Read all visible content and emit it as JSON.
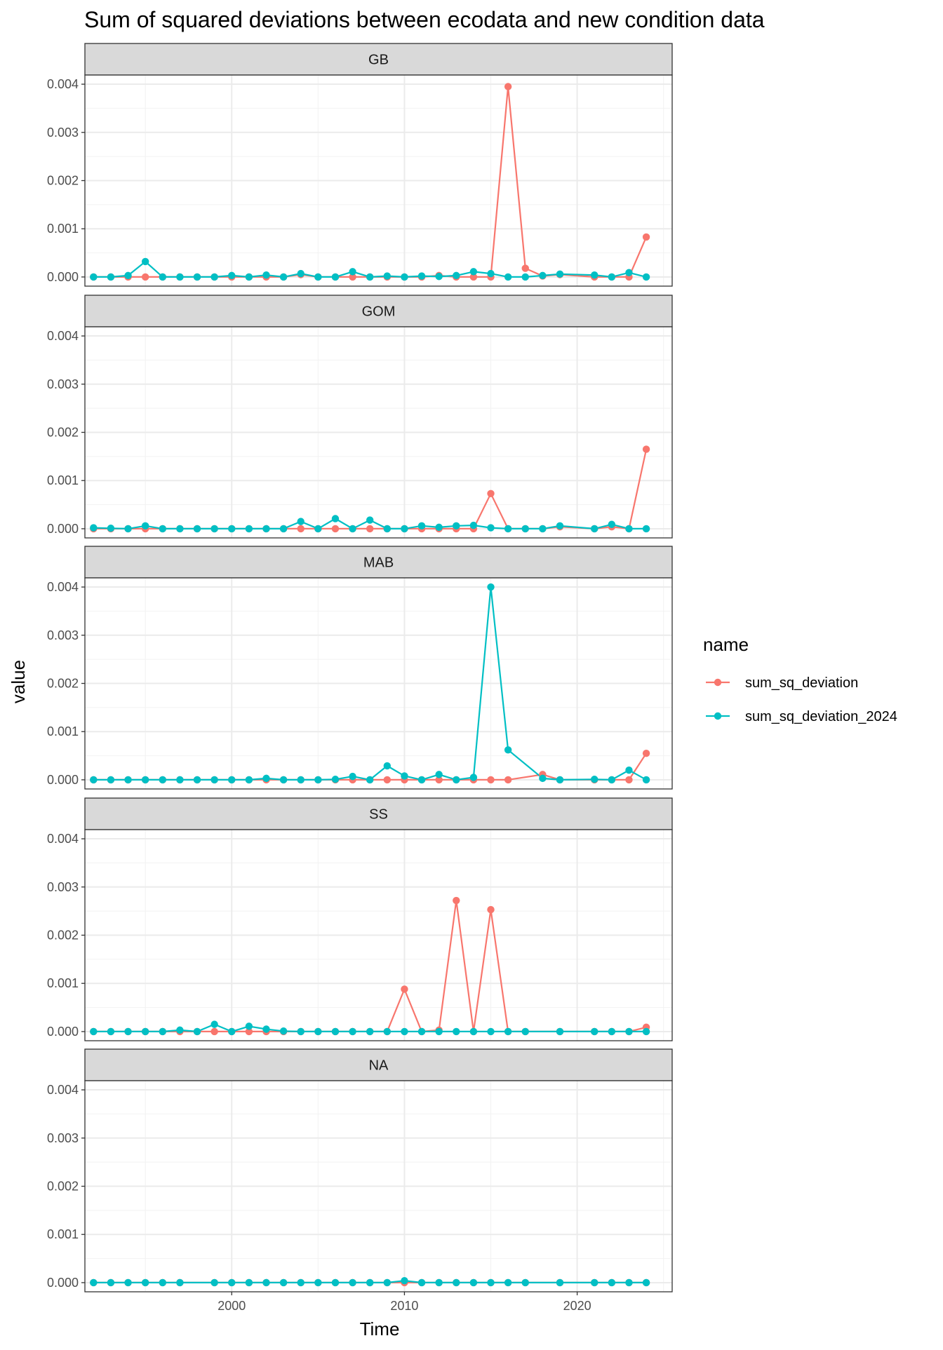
{
  "chart_data": {
    "type": "line",
    "title": "Sum of squared deviations between ecodata and new condition data",
    "xlabel": "Time",
    "ylabel": "value",
    "xlim": [
      1991.5,
      2025.5
    ],
    "ylim": [
      -0.00019,
      0.00419
    ],
    "x_ticks": [
      2000,
      2010,
      2020
    ],
    "x_tick_labels": [
      "2000",
      "2010",
      "2020"
    ],
    "y_ticks": [
      0,
      0.001,
      0.002,
      0.003,
      0.004
    ],
    "y_tick_labels": [
      "0.000",
      "0.001",
      "0.002",
      "0.003",
      "0.004"
    ],
    "grid": true,
    "theme": "bw",
    "legend": {
      "title": "name",
      "position": "right",
      "entries": [
        {
          "label": "sum_sq_deviation",
          "color": "#F8766D"
        },
        {
          "label": "sum_sq_deviation_2024",
          "color": "#00BFC4"
        }
      ]
    },
    "panels": [
      {
        "label": "GB",
        "series": [
          {
            "name": "sum_sq_deviation",
            "color": "#F8766D",
            "x": [
              1992,
              1993,
              1994,
              1995,
              1996,
              1997,
              1998,
              1999,
              2000,
              2001,
              2002,
              2003,
              2004,
              2005,
              2006,
              2007,
              2008,
              2009,
              2010,
              2011,
              2012,
              2013,
              2014,
              2015,
              2016,
              2017,
              2018,
              2019,
              2021,
              2022,
              2023,
              2024
            ],
            "y": [
              0,
              0,
              0,
              0,
              0,
              0,
              0,
              0,
              0,
              0,
              0,
              0,
              5e-05,
              0,
              0,
              0,
              0,
              0,
              0,
              0,
              3e-05,
              0,
              0,
              0,
              0.00395,
              0.00018,
              2e-05,
              5e-05,
              0,
              0,
              0,
              0.00083
            ]
          },
          {
            "name": "sum_sq_deviation_2024",
            "color": "#00BFC4",
            "x": [
              1992,
              1993,
              1994,
              1995,
              1996,
              1997,
              1998,
              1999,
              2000,
              2001,
              2002,
              2003,
              2004,
              2005,
              2006,
              2007,
              2008,
              2009,
              2010,
              2011,
              2012,
              2013,
              2014,
              2015,
              2016,
              2017,
              2018,
              2019,
              2021,
              2022,
              2023,
              2024
            ],
            "y": [
              0,
              0,
              3e-05,
              0.00032,
              0,
              0,
              0,
              0,
              3e-05,
              0,
              4e-05,
              0,
              7e-05,
              0,
              0,
              0.00011,
              0,
              2e-05,
              0,
              2e-05,
              1e-05,
              3e-05,
              0.00011,
              7e-05,
              0,
              0,
              3e-05,
              6e-05,
              4e-05,
              0,
              9e-05,
              0
            ]
          }
        ]
      },
      {
        "label": "GOM",
        "series": [
          {
            "name": "sum_sq_deviation",
            "color": "#F8766D",
            "x": [
              1992,
              1993,
              1994,
              1995,
              1996,
              1997,
              1998,
              1999,
              2000,
              2001,
              2002,
              2003,
              2004,
              2005,
              2006,
              2007,
              2008,
              2009,
              2010,
              2011,
              2012,
              2013,
              2014,
              2015,
              2016,
              2017,
              2018,
              2019,
              2021,
              2022,
              2023,
              2024
            ],
            "y": [
              0,
              0,
              0,
              0,
              0,
              0,
              0,
              0,
              0,
              0,
              0,
              0,
              0,
              0,
              0,
              0,
              0,
              0,
              0,
              0,
              0,
              0,
              0,
              0.00073,
              0,
              0,
              0,
              4e-05,
              0,
              4e-05,
              0,
              0.00165
            ]
          },
          {
            "name": "sum_sq_deviation_2024",
            "color": "#00BFC4",
            "x": [
              1992,
              1993,
              1994,
              1995,
              1996,
              1997,
              1998,
              1999,
              2000,
              2001,
              2002,
              2003,
              2004,
              2005,
              2006,
              2007,
              2008,
              2009,
              2010,
              2011,
              2012,
              2013,
              2014,
              2015,
              2016,
              2017,
              2018,
              2019,
              2021,
              2022,
              2023,
              2024
            ],
            "y": [
              2e-05,
              1e-05,
              0,
              6e-05,
              0,
              0,
              0,
              0,
              0,
              0,
              0,
              0,
              0.00015,
              0,
              0.00021,
              0,
              0.00018,
              0,
              0,
              6e-05,
              3e-05,
              6e-05,
              7e-05,
              2e-05,
              0,
              0,
              0,
              6e-05,
              0,
              9e-05,
              0,
              0
            ]
          }
        ]
      },
      {
        "label": "MAB",
        "series": [
          {
            "name": "sum_sq_deviation",
            "color": "#F8766D",
            "x": [
              1992,
              1993,
              1994,
              1995,
              1996,
              1997,
              1998,
              1999,
              2000,
              2001,
              2002,
              2003,
              2004,
              2005,
              2006,
              2007,
              2008,
              2009,
              2010,
              2011,
              2012,
              2013,
              2014,
              2015,
              2016,
              2018,
              2019,
              2021,
              2022,
              2023,
              2024
            ],
            "y": [
              0,
              0,
              0,
              0,
              0,
              0,
              0,
              0,
              0,
              0,
              0,
              0,
              0,
              0,
              0,
              0,
              0,
              0,
              0,
              0,
              0,
              0,
              0,
              0,
              0,
              0.00011,
              0,
              0,
              0,
              0,
              0.00055
            ]
          },
          {
            "name": "sum_sq_deviation_2024",
            "color": "#00BFC4",
            "x": [
              1992,
              1993,
              1994,
              1995,
              1996,
              1997,
              1998,
              1999,
              2000,
              2001,
              2002,
              2003,
              2004,
              2005,
              2006,
              2007,
              2008,
              2009,
              2010,
              2011,
              2012,
              2013,
              2014,
              2015,
              2016,
              2018,
              2019,
              2021,
              2022,
              2023,
              2024
            ],
            "y": [
              0,
              0,
              0,
              0,
              0,
              0,
              0,
              0,
              0,
              0,
              3e-05,
              0,
              0,
              0,
              1e-05,
              7e-05,
              0,
              0.00029,
              8e-05,
              0,
              0.00011,
              0,
              5e-05,
              0.004,
              0.00062,
              3e-05,
              0,
              1e-05,
              0,
              0.0002,
              0
            ]
          }
        ]
      },
      {
        "label": "SS",
        "series": [
          {
            "name": "sum_sq_deviation",
            "color": "#F8766D",
            "x": [
              1992,
              1993,
              1994,
              1995,
              1996,
              1997,
              1998,
              1999,
              2000,
              2001,
              2002,
              2003,
              2004,
              2005,
              2006,
              2007,
              2008,
              2009,
              2010,
              2011,
              2012,
              2013,
              2014,
              2015,
              2016,
              2017,
              2019,
              2021,
              2022,
              2023,
              2024
            ],
            "y": [
              0,
              0,
              0,
              0,
              0,
              0,
              0,
              0,
              0,
              0,
              0,
              0,
              0,
              0,
              0,
              0,
              0,
              0,
              0.00088,
              0,
              3e-05,
              0.00272,
              0,
              0.00253,
              0,
              0,
              0,
              0,
              0,
              0,
              9e-05
            ]
          },
          {
            "name": "sum_sq_deviation_2024",
            "color": "#00BFC4",
            "x": [
              1992,
              1993,
              1994,
              1995,
              1996,
              1997,
              1998,
              1999,
              2000,
              2001,
              2002,
              2003,
              2004,
              2005,
              2006,
              2007,
              2008,
              2009,
              2010,
              2011,
              2012,
              2013,
              2014,
              2015,
              2016,
              2017,
              2019,
              2021,
              2022,
              2023,
              2024
            ],
            "y": [
              0,
              0,
              0,
              0,
              0,
              3e-05,
              0,
              0.00015,
              0,
              0.00011,
              5e-05,
              1e-05,
              0,
              0,
              0,
              0,
              0,
              0,
              0,
              0,
              0,
              0,
              0,
              0,
              0,
              0,
              0,
              0,
              0,
              0,
              0
            ]
          }
        ]
      },
      {
        "label": "NA",
        "series": [
          {
            "name": "sum_sq_deviation",
            "color": "#F8766D",
            "x": [
              1992,
              1993,
              1994,
              1995,
              1996,
              1997,
              1999,
              2000,
              2001,
              2002,
              2003,
              2004,
              2005,
              2006,
              2007,
              2008,
              2009,
              2010,
              2011,
              2012,
              2013,
              2014,
              2015,
              2016,
              2017,
              2019,
              2021,
              2022,
              2023,
              2024
            ],
            "y": [
              0,
              0,
              0,
              0,
              0,
              0,
              0,
              0,
              0,
              0,
              0,
              0,
              0,
              0,
              0,
              0,
              0,
              0,
              0,
              0,
              0,
              0,
              0,
              0,
              0,
              0,
              0,
              0,
              0,
              0
            ]
          },
          {
            "name": "sum_sq_deviation_2024",
            "color": "#00BFC4",
            "x": [
              1992,
              1993,
              1994,
              1995,
              1996,
              1997,
              1999,
              2000,
              2001,
              2002,
              2003,
              2004,
              2005,
              2006,
              2007,
              2008,
              2009,
              2010,
              2011,
              2012,
              2013,
              2014,
              2015,
              2016,
              2017,
              2019,
              2021,
              2022,
              2023,
              2024
            ],
            "y": [
              0,
              0,
              0,
              0,
              0,
              0,
              0,
              0,
              0,
              0,
              0,
              0,
              0,
              0,
              0,
              0,
              0,
              4e-05,
              0,
              0,
              0,
              0,
              0,
              0,
              0,
              0,
              0,
              0,
              0,
              0
            ]
          }
        ]
      }
    ]
  }
}
